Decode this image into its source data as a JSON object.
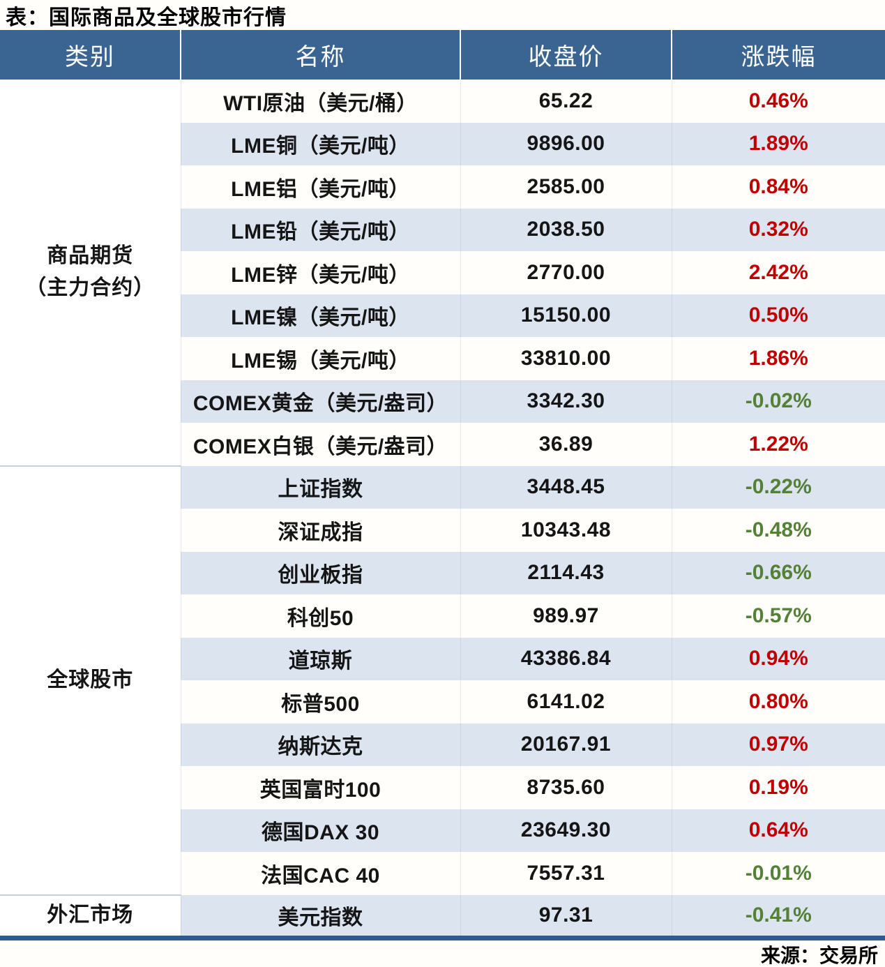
{
  "colors": {
    "header_bg": "#3A6491",
    "header_text": "#FFFFFF",
    "row_alt_bg": "#DBE4EF",
    "up_red": "#C00000",
    "down_green": "#538135",
    "category_separator": "#C3D0E0",
    "table_bottom_border": "#2F5B8E"
  },
  "chart_data": {
    "type": "table",
    "title": "表：国际商品及全球股市行情",
    "source": "来源：交易所",
    "columns": [
      "类别",
      "名称",
      "收盘价",
      "涨跌幅"
    ],
    "up_color_meaning": "red = 上涨",
    "down_color_meaning": "green = 下跌",
    "groups": [
      {
        "category": "商品期货\n（主力合约）",
        "rows": [
          {
            "name": "WTI原油（美元/桶）",
            "close": "65.22",
            "change": "0.46%",
            "dir": "up"
          },
          {
            "name": "LME铜（美元/吨）",
            "close": "9896.00",
            "change": "1.89%",
            "dir": "up"
          },
          {
            "name": "LME铝（美元/吨）",
            "close": "2585.00",
            "change": "0.84%",
            "dir": "up"
          },
          {
            "name": "LME铅（美元/吨）",
            "close": "2038.50",
            "change": "0.32%",
            "dir": "up"
          },
          {
            "name": "LME锌（美元/吨）",
            "close": "2770.00",
            "change": "2.42%",
            "dir": "up"
          },
          {
            "name": "LME镍（美元/吨）",
            "close": "15150.00",
            "change": "0.50%",
            "dir": "up"
          },
          {
            "name": "LME锡（美元/吨）",
            "close": "33810.00",
            "change": "1.86%",
            "dir": "up"
          },
          {
            "name": "COMEX黄金（美元/盎司）",
            "close": "3342.30",
            "change": "-0.02%",
            "dir": "down"
          },
          {
            "name": "COMEX白银（美元/盎司）",
            "close": "36.89",
            "change": "1.22%",
            "dir": "up"
          }
        ]
      },
      {
        "category": "全球股市",
        "rows": [
          {
            "name": "上证指数",
            "close": "3448.45",
            "change": "-0.22%",
            "dir": "down"
          },
          {
            "name": "深证成指",
            "close": "10343.48",
            "change": "-0.48%",
            "dir": "down"
          },
          {
            "name": "创业板指",
            "close": "2114.43",
            "change": "-0.66%",
            "dir": "down"
          },
          {
            "name": "科创50",
            "close": "989.97",
            "change": "-0.57%",
            "dir": "down"
          },
          {
            "name": "道琼斯",
            "close": "43386.84",
            "change": "0.94%",
            "dir": "up"
          },
          {
            "name": "标普500",
            "close": "6141.02",
            "change": "0.80%",
            "dir": "up"
          },
          {
            "name": "纳斯达克",
            "close": "20167.91",
            "change": "0.97%",
            "dir": "up"
          },
          {
            "name": "英国富时100",
            "close": "8735.60",
            "change": "0.19%",
            "dir": "up"
          },
          {
            "name": "德国DAX 30",
            "close": "23649.30",
            "change": "0.64%",
            "dir": "up"
          },
          {
            "name": "法国CAC 40",
            "close": "7557.31",
            "change": "-0.01%",
            "dir": "down"
          }
        ]
      },
      {
        "category": "外汇市场",
        "rows": [
          {
            "name": "美元指数",
            "close": "97.31",
            "change": "-0.41%",
            "dir": "down"
          }
        ]
      }
    ]
  }
}
